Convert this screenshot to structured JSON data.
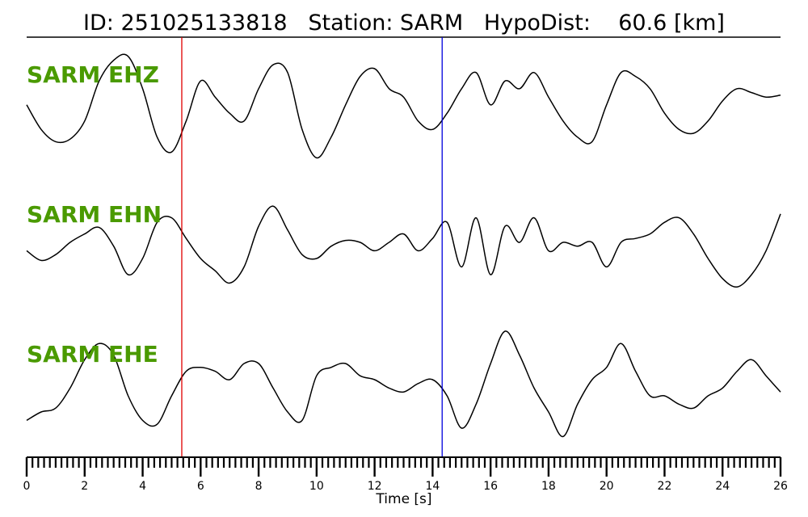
{
  "chart_data": {
    "type": "line",
    "title": "ID: 251025133818   Station: SARM   HypoDist:    60.6 [km]",
    "xlabel": "Time [s]",
    "xlim": [
      0,
      26
    ],
    "x_major_ticks": [
      0,
      2,
      4,
      6,
      8,
      10,
      12,
      14,
      16,
      18,
      20,
      22,
      24,
      26
    ],
    "x_minor_step": 0.2,
    "label_color": "#4a9a00",
    "markers": [
      {
        "type": "P pick",
        "time": 5.35,
        "color": "#e00000"
      },
      {
        "type": "S pick",
        "time": 14.33,
        "color": "#0000dd"
      }
    ],
    "sample_step_s": 0.5,
    "series": [
      {
        "name": "SARM EHZ",
        "values": [
          -0.06,
          -0.44,
          -0.63,
          -0.59,
          -0.31,
          0.31,
          0.63,
          0.69,
          0.19,
          -0.56,
          -0.79,
          -0.31,
          0.31,
          0.06,
          -0.19,
          -0.31,
          0.19,
          0.56,
          0.44,
          -0.44,
          -0.88,
          -0.56,
          -0.06,
          0.38,
          0.5,
          0.19,
          0.06,
          -0.31,
          -0.44,
          -0.19,
          0.19,
          0.44,
          -0.06,
          0.31,
          0.19,
          0.44,
          0.06,
          -0.31,
          -0.56,
          -0.63,
          -0.06,
          0.44,
          0.38,
          0.19,
          -0.19,
          -0.44,
          -0.5,
          -0.31,
          0,
          0.19,
          0.13,
          0.06,
          0.09
        ]
      },
      {
        "name": "SARM EHN",
        "values": [
          -0.13,
          -0.28,
          -0.19,
          0,
          0.13,
          0.23,
          -0.06,
          -0.5,
          -0.25,
          0.31,
          0.38,
          0.06,
          -0.25,
          -0.44,
          -0.63,
          -0.38,
          0.25,
          0.56,
          0.19,
          -0.19,
          -0.25,
          -0.06,
          0.03,
          0,
          -0.13,
          0,
          0.13,
          -0.13,
          0.06,
          0.31,
          -0.38,
          0.38,
          -0.5,
          0.25,
          0,
          0.38,
          -0.13,
          0,
          -0.06,
          0,
          -0.38,
          0,
          0.06,
          0.13,
          0.31,
          0.38,
          0.13,
          -0.25,
          -0.56,
          -0.69,
          -0.5,
          -0.13,
          0.44
        ]
      },
      {
        "name": "SARM EHE",
        "values": [
          -0.63,
          -0.5,
          -0.44,
          -0.13,
          0.31,
          0.56,
          0.38,
          -0.25,
          -0.63,
          -0.69,
          -0.25,
          0.13,
          0.19,
          0.13,
          0,
          0.25,
          0.25,
          -0.13,
          -0.5,
          -0.63,
          0.06,
          0.19,
          0.25,
          0.06,
          0,
          -0.13,
          -0.19,
          -0.06,
          0,
          -0.25,
          -0.75,
          -0.38,
          0.25,
          0.75,
          0.38,
          -0.13,
          -0.5,
          -0.88,
          -0.38,
          0,
          0.19,
          0.56,
          0.13,
          -0.25,
          -0.25,
          -0.38,
          -0.44,
          -0.25,
          -0.13,
          0.13,
          0.31,
          0.06,
          -0.19
        ]
      }
    ]
  }
}
